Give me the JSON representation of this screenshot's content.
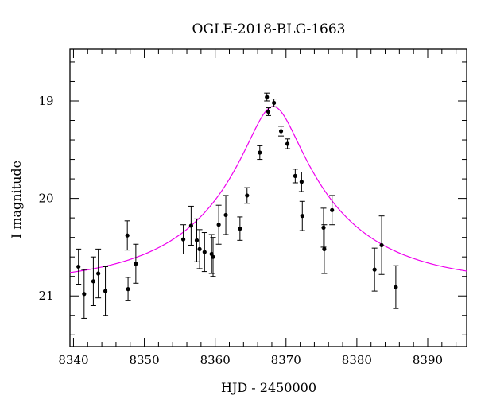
{
  "chart_data": {
    "type": "scatter",
    "title": "OGLE-2018-BLG-1663",
    "xlabel": "HJD - 2450000",
    "ylabel": "I magnitude",
    "xlim": [
      8339.5,
      8395.5
    ],
    "ylim": [
      21.52,
      18.47
    ],
    "y_inverted": true,
    "grid": false,
    "x_ticks": [
      8340,
      8350,
      8360,
      8370,
      8380,
      8390
    ],
    "y_ticks": [
      19,
      20,
      21
    ],
    "colors": {
      "points": "#000000",
      "model": "#ee00ee",
      "axes": "#000000"
    },
    "series": [
      {
        "type": "scatter_with_errors",
        "points": [
          {
            "x": 8340.7,
            "y": 20.7,
            "err": 0.18
          },
          {
            "x": 8341.5,
            "y": 20.98,
            "err": 0.25
          },
          {
            "x": 8342.8,
            "y": 20.85,
            "err": 0.25
          },
          {
            "x": 8343.5,
            "y": 20.77,
            "err": 0.25
          },
          {
            "x": 8344.5,
            "y": 20.95,
            "err": 0.25
          },
          {
            "x": 8347.6,
            "y": 20.38,
            "err": 0.15
          },
          {
            "x": 8347.7,
            "y": 20.93,
            "err": 0.12
          },
          {
            "x": 8348.8,
            "y": 20.67,
            "err": 0.2
          },
          {
            "x": 8355.5,
            "y": 20.42,
            "err": 0.15
          },
          {
            "x": 8356.6,
            "y": 20.28,
            "err": 0.2
          },
          {
            "x": 8357.4,
            "y": 20.43,
            "err": 0.22
          },
          {
            "x": 8357.8,
            "y": 20.52,
            "err": 0.2
          },
          {
            "x": 8358.5,
            "y": 20.55,
            "err": 0.2
          },
          {
            "x": 8359.5,
            "y": 20.57,
            "err": 0.2
          },
          {
            "x": 8359.7,
            "y": 20.6,
            "err": 0.2
          },
          {
            "x": 8360.5,
            "y": 20.27,
            "err": 0.2
          },
          {
            "x": 8361.5,
            "y": 20.17,
            "err": 0.2
          },
          {
            "x": 8363.5,
            "y": 20.31,
            "err": 0.12
          },
          {
            "x": 8364.5,
            "y": 19.97,
            "err": 0.08
          },
          {
            "x": 8366.3,
            "y": 19.53,
            "err": 0.07
          },
          {
            "x": 8367.3,
            "y": 18.96,
            "err": 0.04
          },
          {
            "x": 8367.5,
            "y": 19.11,
            "err": 0.04
          },
          {
            "x": 8368.3,
            "y": 19.02,
            "err": 0.04
          },
          {
            "x": 8369.3,
            "y": 19.31,
            "err": 0.05
          },
          {
            "x": 8370.2,
            "y": 19.44,
            "err": 0.05
          },
          {
            "x": 8371.3,
            "y": 19.77,
            "err": 0.07
          },
          {
            "x": 8372.2,
            "y": 19.83,
            "err": 0.1
          },
          {
            "x": 8372.3,
            "y": 20.18,
            "err": 0.15
          },
          {
            "x": 8375.3,
            "y": 20.3,
            "err": 0.2
          },
          {
            "x": 8375.4,
            "y": 20.52,
            "err": 0.25
          },
          {
            "x": 8376.5,
            "y": 20.12,
            "err": 0.15
          },
          {
            "x": 8382.5,
            "y": 20.73,
            "err": 0.22
          },
          {
            "x": 8383.5,
            "y": 20.48,
            "err": 0.3
          },
          {
            "x": 8385.5,
            "y": 20.91,
            "err": 0.22
          }
        ]
      },
      {
        "type": "model_curve",
        "model": {
          "t0": 8368.2,
          "tE": 18.0,
          "u0": 0.19,
          "baseline": 20.875
        },
        "x_range": [
          8339.5,
          8395.5
        ]
      }
    ]
  }
}
